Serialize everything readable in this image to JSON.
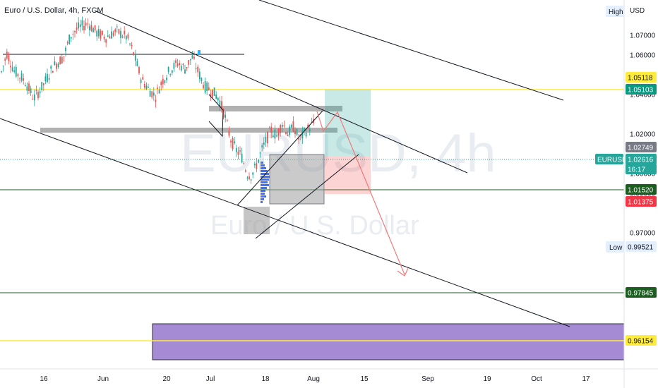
{
  "title": "Euro / U.S. Dollar, 4h, FXCM",
  "watermark": {
    "symbol": "EURUSD, 4h",
    "name": "Euro / U.S. Dollar"
  },
  "axis": {
    "currency": "USD",
    "high_label": "High",
    "low_label": "Low",
    "price_ticks": [
      "1.07000",
      "1.06000",
      "1.04000",
      "1.02000",
      "1.00000",
      "0.99000",
      "0.97000"
    ],
    "time_ticks": [
      "16",
      "Jun",
      "20",
      "Jul",
      "18",
      "Aug",
      "15",
      "Sep",
      "19",
      "Oct",
      "17"
    ]
  },
  "price_badges": [
    {
      "label": "1.05118",
      "bg": "#ffeb3b",
      "fg": "#131722"
    },
    {
      "label": "1.05103",
      "bg": "#089981",
      "fg": "#ffffff"
    },
    {
      "label": "1.02749",
      "bg": "#787b86",
      "fg": "#ffffff"
    },
    {
      "label": "EURUSD",
      "bg": "#26a69a",
      "fg": "#ffffff"
    },
    {
      "label": "1.02616",
      "bg": "#26a69a",
      "fg": "#ffffff"
    },
    {
      "label": "16:17",
      "bg": "#26a69a",
      "fg": "#ffffff"
    },
    {
      "label": "1.01520",
      "bg": "#1b5e20",
      "fg": "#ffffff"
    },
    {
      "label": "1.01375",
      "bg": "#f23645",
      "fg": "#ffffff"
    },
    {
      "label": "0.99521",
      "bg": "#e3effd",
      "fg": "#131722"
    },
    {
      "label": "0.97845",
      "bg": "#1b5e20",
      "fg": "#ffffff"
    },
    {
      "label": "0.96154",
      "bg": "#ffeb3b",
      "fg": "#131722"
    }
  ],
  "colors": {
    "up": "#26a69a",
    "down": "#ef5350",
    "yellow_line": "#ffeb3b",
    "green_line": "#1b5e20",
    "zone": "#9575cd",
    "trend": "#131722",
    "projection": "#ef7a7a",
    "volume_profile": "#2962ff"
  },
  "chart_data": {
    "type": "candlestick",
    "symbol": "EURUSD",
    "timeframe": "4h",
    "source": "FXCM",
    "current_price": 1.02616,
    "countdown": "16:17",
    "price_range": [
      0.952,
      1.082
    ],
    "levels": [
      1.05118,
      1.05103,
      1.02749,
      1.0152,
      1.01375,
      0.99521,
      0.97845,
      0.96154
    ],
    "approx_path": [
      [
        0,
        1.049
      ],
      [
        10,
        1.061
      ],
      [
        20,
        1.052
      ],
      [
        35,
        1.047
      ],
      [
        48,
        1.038
      ],
      [
        60,
        1.044
      ],
      [
        75,
        1.054
      ],
      [
        90,
        1.059
      ],
      [
        100,
        1.07
      ],
      [
        112,
        1.074
      ],
      [
        125,
        1.076
      ],
      [
        138,
        1.071
      ],
      [
        150,
        1.069
      ],
      [
        165,
        1.072
      ],
      [
        180,
        1.069
      ],
      [
        190,
        1.06
      ],
      [
        200,
        1.048
      ],
      [
        210,
        1.043
      ],
      [
        220,
        1.039
      ],
      [
        230,
        1.047
      ],
      [
        240,
        1.052
      ],
      [
        252,
        1.056
      ],
      [
        262,
        1.053
      ],
      [
        272,
        1.059
      ],
      [
        280,
        1.052
      ],
      [
        290,
        1.044
      ],
      [
        300,
        1.042
      ],
      [
        310,
        1.038
      ],
      [
        318,
        1.03
      ],
      [
        326,
        1.018
      ],
      [
        334,
        1.012
      ],
      [
        342,
        1.009
      ],
      [
        350,
        1.0
      ],
      [
        356,
        0.999
      ],
      [
        362,
        1.003
      ],
      [
        370,
        1.011
      ],
      [
        376,
        1.016
      ],
      [
        384,
        1.022
      ],
      [
        392,
        1.019
      ],
      [
        400,
        1.026
      ],
      [
        408,
        1.02
      ],
      [
        416,
        1.024
      ],
      [
        424,
        1.017
      ],
      [
        432,
        1.021
      ],
      [
        440,
        1.024
      ],
      [
        446,
        1.0262
      ]
    ]
  }
}
